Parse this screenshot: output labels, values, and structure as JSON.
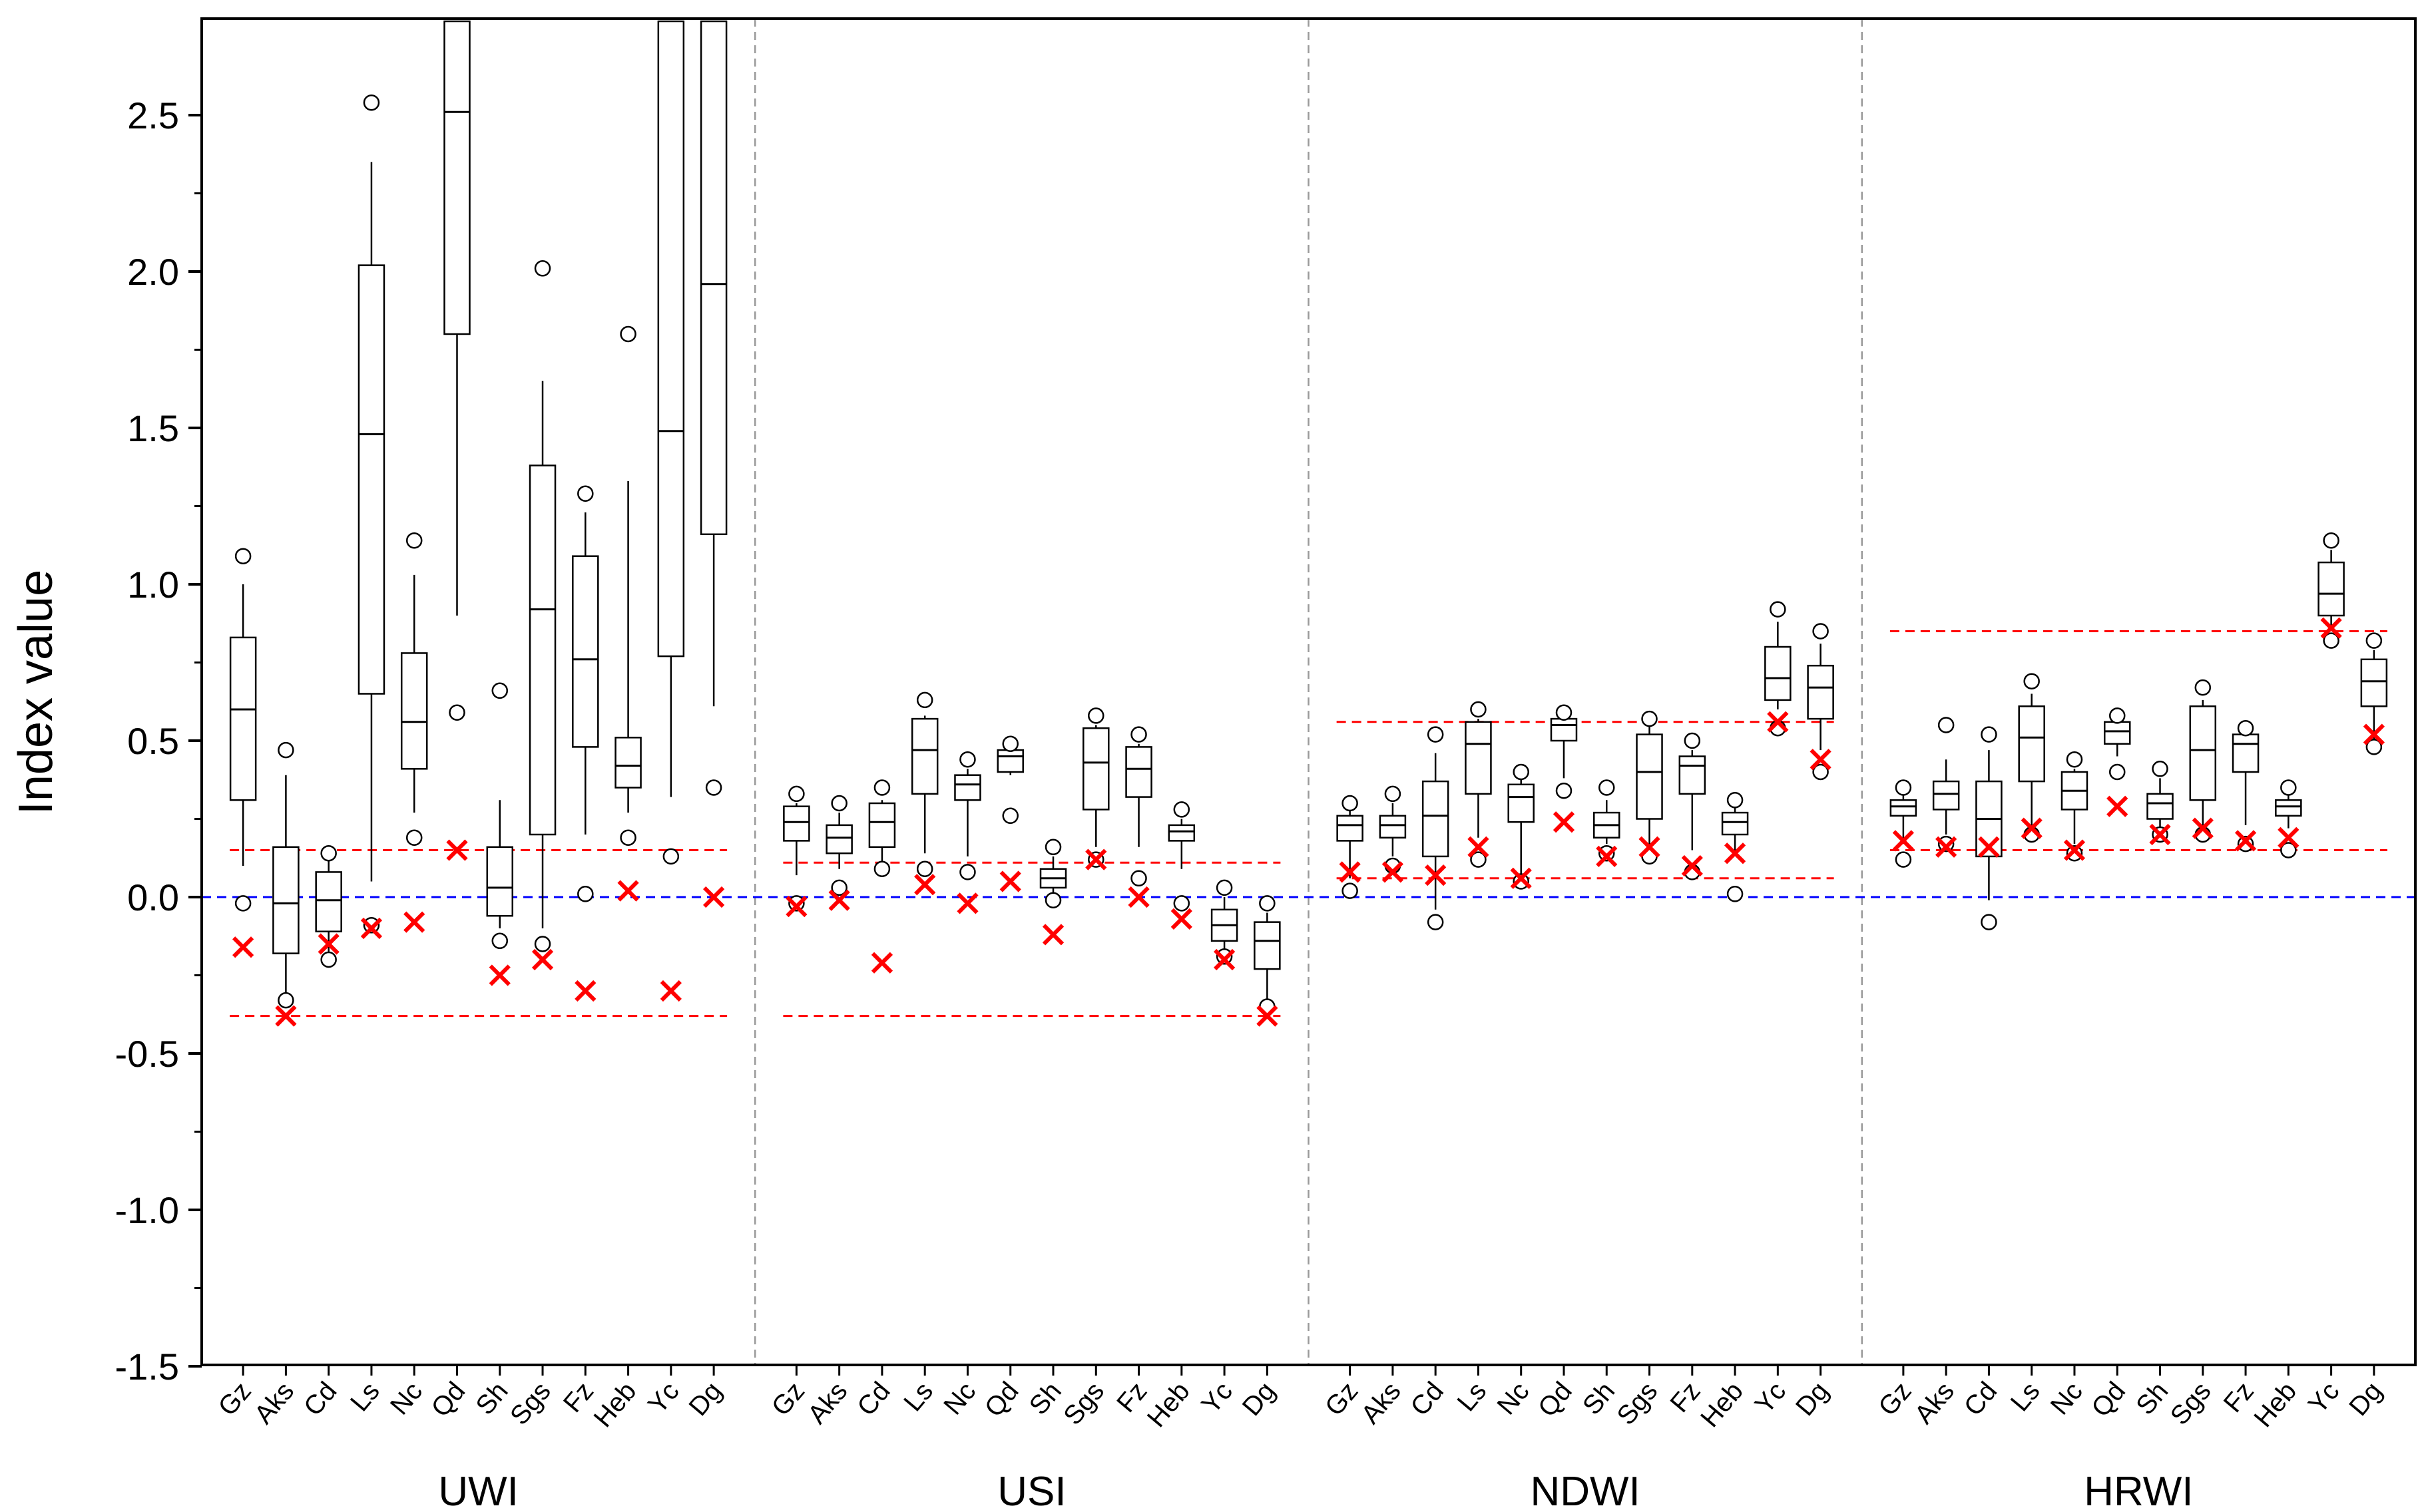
{
  "chart_data": {
    "type": "box",
    "ylabel": "Index value",
    "ylim": [
      -1.5,
      2.8
    ],
    "yticks": [
      "2.5",
      "2.0",
      "1.5",
      "1.0",
      "0.5",
      "0.0",
      "-0.5",
      "-1.0",
      "-1.5"
    ],
    "ytick_values": [
      2.5,
      2.0,
      1.5,
      1.0,
      0.5,
      0.0,
      -0.5,
      -1.0,
      -1.5
    ],
    "zero_line": 0.0,
    "colors": {
      "box": "#000000",
      "marker": "#ff0000",
      "reference": "#ff0000",
      "zero": "#0000ff",
      "divider": "#9a9a9a"
    },
    "groups": [
      {
        "name": "UWI",
        "categories": [
          "Gz",
          "Aks",
          "Cd",
          "Ls",
          "Nc",
          "Qd",
          "Sh",
          "Sgs",
          "Fz",
          "Heb",
          "Yc",
          "Dg"
        ],
        "ref_lines": [
          0.15,
          -0.38
        ],
        "boxes": [
          {
            "lw": 0.1,
            "q1": 0.31,
            "med": 0.6,
            "q3": 0.83,
            "uw": 1.0,
            "out": [
              1.09,
              -0.02
            ],
            "x": -0.16
          },
          {
            "lw": -0.32,
            "q1": -0.18,
            "med": -0.02,
            "q3": 0.16,
            "uw": 0.39,
            "out": [
              0.47,
              -0.33
            ],
            "x": -0.38
          },
          {
            "lw": -0.18,
            "q1": -0.11,
            "med": -0.01,
            "q3": 0.08,
            "uw": 0.12,
            "out": [
              0.14,
              -0.2
            ],
            "x": -0.15
          },
          {
            "lw": 0.05,
            "q1": 0.65,
            "med": 1.48,
            "q3": 2.02,
            "uw": 2.35,
            "out": [
              2.54,
              -0.09
            ],
            "x": -0.1
          },
          {
            "lw": 0.27,
            "q1": 0.41,
            "med": 0.56,
            "q3": 0.78,
            "uw": 1.03,
            "out": [
              1.14,
              0.19
            ],
            "x": -0.08
          },
          {
            "lw": 0.9,
            "q1": 1.8,
            "med": 2.51,
            "q3": 2.8,
            "uw": 2.8,
            "out": [
              0.59
            ],
            "x": 0.15
          },
          {
            "lw": -0.1,
            "q1": -0.06,
            "med": 0.03,
            "q3": 0.16,
            "uw": 0.31,
            "out": [
              0.66,
              -0.14
            ],
            "x": -0.25
          },
          {
            "lw": -0.1,
            "q1": 0.2,
            "med": 0.92,
            "q3": 1.38,
            "uw": 1.65,
            "out": [
              2.01,
              -0.15
            ],
            "x": -0.2
          },
          {
            "lw": 0.2,
            "q1": 0.48,
            "med": 0.76,
            "q3": 1.09,
            "uw": 1.23,
            "out": [
              1.29,
              0.01
            ],
            "x": -0.3
          },
          {
            "lw": 0.27,
            "q1": 0.35,
            "med": 0.42,
            "q3": 0.51,
            "uw": 1.33,
            "out": [
              1.8,
              0.19
            ],
            "x": 0.02
          },
          {
            "lw": 0.32,
            "q1": 0.77,
            "med": 1.49,
            "q3": 2.8,
            "uw": 2.8,
            "out": [
              0.13
            ],
            "x": -0.3
          },
          {
            "lw": 0.61,
            "q1": 1.16,
            "med": 1.96,
            "q3": 2.8,
            "uw": 2.8,
            "out": [
              0.35
            ],
            "x": 0.0
          }
        ]
      },
      {
        "name": "USI",
        "categories": [
          "Gz",
          "Aks",
          "Cd",
          "Ls",
          "Nc",
          "Qd",
          "Sh",
          "Sgs",
          "Fz",
          "Heb",
          "Yc",
          "Dg"
        ],
        "ref_lines": [
          0.11,
          -0.38
        ],
        "boxes": [
          {
            "lw": 0.07,
            "q1": 0.18,
            "med": 0.24,
            "q3": 0.29,
            "uw": 0.3,
            "out": [
              0.33,
              -0.02
            ],
            "x": -0.03
          },
          {
            "lw": 0.09,
            "q1": 0.14,
            "med": 0.19,
            "q3": 0.23,
            "uw": 0.27,
            "out": [
              0.3,
              0.03
            ],
            "x": -0.01
          },
          {
            "lw": 0.1,
            "q1": 0.16,
            "med": 0.24,
            "q3": 0.3,
            "uw": 0.31,
            "out": [
              0.35,
              0.09
            ],
            "x": -0.21
          },
          {
            "lw": 0.14,
            "q1": 0.33,
            "med": 0.47,
            "q3": 0.57,
            "uw": 0.58,
            "out": [
              0.63,
              0.09
            ],
            "x": 0.04
          },
          {
            "lw": 0.13,
            "q1": 0.31,
            "med": 0.36,
            "q3": 0.39,
            "uw": 0.41,
            "out": [
              0.44,
              0.08
            ],
            "x": -0.02
          },
          {
            "lw": 0.39,
            "q1": 0.4,
            "med": 0.45,
            "q3": 0.47,
            "uw": 0.47,
            "out": [
              0.49,
              0.26
            ],
            "x": 0.05
          },
          {
            "lw": 0.01,
            "q1": 0.03,
            "med": 0.06,
            "q3": 0.09,
            "uw": 0.13,
            "out": [
              0.16,
              -0.01
            ],
            "x": -0.12
          },
          {
            "lw": 0.16,
            "q1": 0.28,
            "med": 0.43,
            "q3": 0.54,
            "uw": 0.55,
            "out": [
              0.58,
              0.12
            ],
            "x": 0.12
          },
          {
            "lw": 0.16,
            "q1": 0.32,
            "med": 0.41,
            "q3": 0.48,
            "uw": 0.49,
            "out": [
              0.52,
              0.06
            ],
            "x": 0.0
          },
          {
            "lw": 0.09,
            "q1": 0.18,
            "med": 0.21,
            "q3": 0.23,
            "uw": 0.25,
            "out": [
              0.28,
              -0.02
            ],
            "x": -0.07
          },
          {
            "lw": -0.18,
            "q1": -0.14,
            "med": -0.09,
            "q3": -0.04,
            "uw": 0.0,
            "out": [
              0.03,
              -0.19
            ],
            "x": -0.2
          },
          {
            "lw": -0.33,
            "q1": -0.23,
            "med": -0.14,
            "q3": -0.08,
            "uw": -0.05,
            "out": [
              -0.02,
              -0.35
            ],
            "x": -0.38
          }
        ]
      },
      {
        "name": "NDWI",
        "categories": [
          "Gz",
          "Aks",
          "Cd",
          "Ls",
          "Nc",
          "Qd",
          "Sh",
          "Sgs",
          "Fz",
          "Heb",
          "Yc",
          "Dg"
        ],
        "ref_lines": [
          0.56,
          0.06
        ],
        "boxes": [
          {
            "lw": 0.06,
            "q1": 0.18,
            "med": 0.23,
            "q3": 0.26,
            "uw": 0.28,
            "out": [
              0.3,
              0.02
            ],
            "x": 0.08
          },
          {
            "lw": 0.13,
            "q1": 0.19,
            "med": 0.23,
            "q3": 0.26,
            "uw": 0.3,
            "out": [
              0.33,
              0.1
            ],
            "x": 0.08
          },
          {
            "lw": -0.04,
            "q1": 0.13,
            "med": 0.26,
            "q3": 0.37,
            "uw": 0.46,
            "out": [
              0.52,
              -0.08
            ],
            "x": 0.07
          },
          {
            "lw": 0.19,
            "q1": 0.33,
            "med": 0.49,
            "q3": 0.56,
            "uw": 0.57,
            "out": [
              0.6,
              0.12
            ],
            "x": 0.16
          },
          {
            "lw": 0.07,
            "q1": 0.24,
            "med": 0.32,
            "q3": 0.36,
            "uw": 0.38,
            "out": [
              0.4,
              0.05
            ],
            "x": 0.06
          },
          {
            "lw": 0.38,
            "q1": 0.5,
            "med": 0.55,
            "q3": 0.57,
            "uw": 0.57,
            "out": [
              0.59,
              0.34
            ],
            "x": 0.24
          },
          {
            "lw": 0.17,
            "q1": 0.19,
            "med": 0.23,
            "q3": 0.27,
            "uw": 0.31,
            "out": [
              0.35,
              0.14
            ],
            "x": 0.13
          },
          {
            "lw": 0.14,
            "q1": 0.25,
            "med": 0.4,
            "q3": 0.52,
            "uw": 0.56,
            "out": [
              0.57,
              0.13
            ],
            "x": 0.16
          },
          {
            "lw": 0.15,
            "q1": 0.33,
            "med": 0.42,
            "q3": 0.45,
            "uw": 0.47,
            "out": [
              0.5,
              0.08
            ],
            "x": 0.1
          },
          {
            "lw": 0.14,
            "q1": 0.2,
            "med": 0.24,
            "q3": 0.27,
            "uw": 0.29,
            "out": [
              0.31,
              0.01
            ],
            "x": 0.14
          },
          {
            "lw": 0.6,
            "q1": 0.63,
            "med": 0.7,
            "q3": 0.8,
            "uw": 0.88,
            "out": [
              0.92,
              0.54
            ],
            "x": 0.56
          },
          {
            "lw": 0.47,
            "q1": 0.57,
            "med": 0.67,
            "q3": 0.74,
            "uw": 0.81,
            "out": [
              0.85,
              0.4
            ],
            "x": 0.44
          }
        ]
      },
      {
        "name": "HRWI",
        "categories": [
          "Gz",
          "Aks",
          "Cd",
          "Ls",
          "Nc",
          "Qd",
          "Sh",
          "Sgs",
          "Fz",
          "Heb",
          "Yc",
          "Dg"
        ],
        "ref_lines": [
          0.85,
          0.15
        ],
        "boxes": [
          {
            "lw": 0.17,
            "q1": 0.26,
            "med": 0.29,
            "q3": 0.31,
            "uw": 0.33,
            "out": [
              0.35,
              0.12
            ],
            "x": 0.18
          },
          {
            "lw": 0.2,
            "q1": 0.28,
            "med": 0.33,
            "q3": 0.37,
            "uw": 0.44,
            "out": [
              0.55,
              0.17
            ],
            "x": 0.16
          },
          {
            "lw": -0.01,
            "q1": 0.13,
            "med": 0.25,
            "q3": 0.37,
            "uw": 0.47,
            "out": [
              0.52,
              -0.08
            ],
            "x": 0.16
          },
          {
            "lw": 0.2,
            "q1": 0.37,
            "med": 0.51,
            "q3": 0.61,
            "uw": 0.65,
            "out": [
              0.69,
              0.2
            ],
            "x": 0.22
          },
          {
            "lw": 0.17,
            "q1": 0.28,
            "med": 0.34,
            "q3": 0.4,
            "uw": 0.41,
            "out": [
              0.44,
              0.14
            ],
            "x": 0.15
          },
          {
            "lw": 0.45,
            "q1": 0.49,
            "med": 0.53,
            "q3": 0.56,
            "uw": 0.57,
            "out": [
              0.58,
              0.4
            ],
            "x": 0.29
          },
          {
            "lw": 0.22,
            "q1": 0.25,
            "med": 0.3,
            "q3": 0.33,
            "uw": 0.38,
            "out": [
              0.41,
              0.2
            ],
            "x": 0.2
          },
          {
            "lw": 0.22,
            "q1": 0.31,
            "med": 0.47,
            "q3": 0.61,
            "uw": 0.63,
            "out": [
              0.67,
              0.2
            ],
            "x": 0.22
          },
          {
            "lw": 0.23,
            "q1": 0.4,
            "med": 0.49,
            "q3": 0.52,
            "uw": 0.52,
            "out": [
              0.54,
              0.17
            ],
            "x": 0.18
          },
          {
            "lw": 0.22,
            "q1": 0.26,
            "med": 0.29,
            "q3": 0.31,
            "uw": 0.33,
            "out": [
              0.35,
              0.15
            ],
            "x": 0.19
          },
          {
            "lw": 0.86,
            "q1": 0.9,
            "med": 0.97,
            "q3": 1.07,
            "uw": 1.11,
            "out": [
              1.14,
              0.82
            ],
            "x": 0.86
          },
          {
            "lw": 0.5,
            "q1": 0.61,
            "med": 0.69,
            "q3": 0.76,
            "uw": 0.79,
            "out": [
              0.82,
              0.48
            ],
            "x": 0.52
          }
        ]
      }
    ]
  }
}
